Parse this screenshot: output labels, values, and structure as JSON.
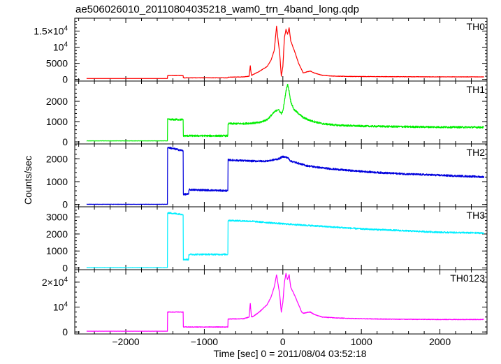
{
  "chart_data": {
    "type": "line",
    "title": "ae506026010_20110804035218_wam0_trn_4band_long.qdp",
    "xlabel": "Time [sec] 0 = 2011/08/04 03:52:18",
    "ylabel": "Counts/sec",
    "xlim": [
      -2650,
      2600
    ],
    "x_ticks": [
      {
        "value": -2000,
        "label": "−2000"
      },
      {
        "value": -1000,
        "label": "−1000"
      },
      {
        "value": 0,
        "label": "0"
      },
      {
        "value": 1000,
        "label": "1000"
      },
      {
        "value": 2000,
        "label": "2000"
      }
    ],
    "panels": [
      {
        "name": "TH0",
        "color": "#ff0000",
        "ylim": [
          -500,
          19000
        ],
        "y_ticks": [
          {
            "value": 0,
            "label": "0"
          },
          {
            "value": 5000,
            "label": "5000"
          },
          {
            "value": 10000,
            "label": "10",
            "sup": "4"
          },
          {
            "value": 15000,
            "label": "1.5×10",
            "sup": "4"
          }
        ],
        "noise": 60,
        "x": [
          -2650,
          -1470,
          -1469,
          -1270,
          -1269,
          -700,
          -699,
          -500,
          -430,
          -415,
          -400,
          -380,
          -300,
          -200,
          -150,
          -110,
          -80,
          -60,
          -40,
          -20,
          0,
          20,
          40,
          60,
          80,
          100,
          130,
          160,
          200,
          240,
          260,
          300,
          350,
          400,
          500,
          600,
          700,
          800,
          1000,
          1500,
          2000,
          2600
        ],
        "y": [
          300,
          300,
          1200,
          1200,
          500,
          500,
          700,
          800,
          1000,
          4200,
          1200,
          1500,
          2500,
          4000,
          6000,
          9000,
          16500,
          12000,
          8000,
          1000,
          4000,
          13000,
          15500,
          14000,
          16000,
          12000,
          10000,
          8000,
          5000,
          3000,
          2000,
          2300,
          2600,
          2000,
          1300,
          1100,
          1000,
          950,
          900,
          850,
          800,
          800
        ]
      },
      {
        "name": "TH1",
        "color": "#00ee00",
        "ylim": [
          -100,
          3000
        ],
        "y_ticks": [
          {
            "value": 0,
            "label": "0"
          },
          {
            "value": 1000,
            "label": "1000"
          },
          {
            "value": 2000,
            "label": "2000"
          }
        ],
        "noise": 45,
        "x": [
          -2650,
          -1470,
          -1469,
          -1270,
          -1269,
          -700,
          -699,
          -500,
          -300,
          -200,
          -150,
          -100,
          -60,
          -20,
          0,
          20,
          40,
          60,
          80,
          100,
          140,
          200,
          260,
          350,
          500,
          700,
          1000,
          1500,
          2000,
          2600
        ],
        "y": [
          50,
          50,
          1100,
          1100,
          300,
          300,
          900,
          900,
          950,
          1100,
          1300,
          1500,
          1600,
          1400,
          1500,
          2000,
          2500,
          2850,
          2500,
          2000,
          1600,
          1400,
          1200,
          1050,
          900,
          820,
          780,
          750,
          730,
          720
        ]
      },
      {
        "name": "TH2",
        "color": "#0000dd",
        "ylim": [
          -100,
          2650
        ],
        "y_ticks": [
          {
            "value": 0,
            "label": "0"
          },
          {
            "value": 1000,
            "label": "1000"
          },
          {
            "value": 2000,
            "label": "2000"
          }
        ],
        "noise": 40,
        "x": [
          -2650,
          -1470,
          -1469,
          -1270,
          -1269,
          -1200,
          -1199,
          -700,
          -699,
          -400,
          -200,
          -50,
          0,
          60,
          100,
          200,
          300,
          500,
          800,
          1200,
          1600,
          2000,
          2600
        ],
        "y": [
          10,
          10,
          2500,
          2350,
          450,
          450,
          650,
          600,
          1950,
          1900,
          1900,
          2000,
          2100,
          2050,
          1900,
          1800,
          1700,
          1600,
          1500,
          1400,
          1330,
          1280,
          1200
        ]
      },
      {
        "name": "TH3",
        "color": "#00eeff",
        "ylim": [
          -100,
          3600
        ],
        "y_ticks": [
          {
            "value": 0,
            "label": "0"
          },
          {
            "value": 1000,
            "label": "1000"
          },
          {
            "value": 2000,
            "label": "2000"
          },
          {
            "value": 3000,
            "label": "3000"
          }
        ],
        "noise": 45,
        "x": [
          -2650,
          -1470,
          -1469,
          -1270,
          -1269,
          -1200,
          -1199,
          -700,
          -699,
          -400,
          0,
          500,
          1000,
          1500,
          2000,
          2600
        ],
        "y": [
          20,
          20,
          3250,
          3150,
          500,
          500,
          800,
          800,
          2800,
          2750,
          2600,
          2450,
          2300,
          2200,
          2100,
          2050
        ]
      },
      {
        "name": "TH0123",
        "color": "#ff00ff",
        "ylim": [
          -800,
          25000
        ],
        "y_ticks": [
          {
            "value": 0,
            "label": "0"
          },
          {
            "value": 10000,
            "label": "10",
            "sup": "4"
          },
          {
            "value": 20000,
            "label": "2×10",
            "sup": "4"
          }
        ],
        "noise": 120,
        "x": [
          -2650,
          -1470,
          -1469,
          -1270,
          -1269,
          -700,
          -699,
          -500,
          -430,
          -415,
          -400,
          -380,
          -300,
          -200,
          -150,
          -110,
          -80,
          -60,
          -40,
          -20,
          0,
          20,
          40,
          60,
          80,
          100,
          130,
          160,
          200,
          240,
          260,
          300,
          350,
          400,
          500,
          700,
          1000,
          1500,
          2000,
          2600
        ],
        "y": [
          300,
          300,
          8000,
          8000,
          2000,
          2000,
          5200,
          5300,
          6000,
          11500,
          6000,
          6200,
          8000,
          11000,
          14000,
          18000,
          23000,
          19000,
          15000,
          8000,
          12000,
          20000,
          23500,
          21000,
          23000,
          18000,
          16000,
          14000,
          11000,
          8000,
          7500,
          7800,
          8000,
          7000,
          6000,
          5600,
          5300,
          5100,
          5000,
          5000
        ]
      }
    ]
  }
}
